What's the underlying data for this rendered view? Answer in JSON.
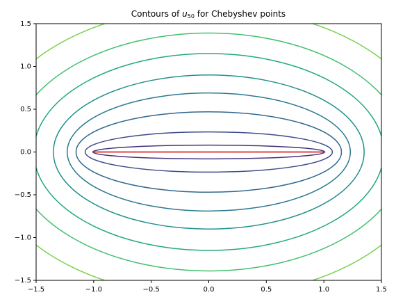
{
  "chart_data": {
    "type": "contour",
    "title": [
      "Contours of ",
      "u",
      "50",
      " for Chebyshev points"
    ],
    "xlim": [
      -1.5,
      1.5
    ],
    "ylim": [
      -1.5,
      1.5
    ],
    "xticks": [
      {
        "value": -1.5,
        "label": "−1.5"
      },
      {
        "value": -1,
        "label": "−1.0"
      },
      {
        "value": -0.5,
        "label": "−0.5"
      },
      {
        "value": 0,
        "label": "0.0"
      },
      0.5,
      {
        "value": 1,
        "label": "1.0"
      },
      1.5
    ],
    "yticks": [
      {
        "value": -1.5,
        "label": "−1.5"
      },
      {
        "value": -1,
        "label": "−1.0"
      },
      {
        "value": -0.5,
        "label": "−0.5"
      },
      {
        "value": 0,
        "label": "0.0"
      },
      0.5,
      {
        "value": 1,
        "label": "1.0"
      },
      1.5
    ],
    "contours": [
      {
        "a": 1.008,
        "b": 0.08,
        "color": "#46327e"
      },
      {
        "a": 1.074,
        "b": 0.235,
        "color": "#3e4a89"
      },
      {
        "a": 1.153,
        "b": 0.47,
        "color": "#31688e"
      },
      {
        "a": 1.23,
        "b": 0.69,
        "color": "#2a788e"
      },
      {
        "a": 1.35,
        "b": 0.9,
        "color": "#21918c"
      },
      {
        "a": 1.52,
        "b": 1.15,
        "color": "#22a884"
      },
      {
        "a": 1.71,
        "b": 1.39,
        "color": "#44bf70"
      },
      {
        "a": 1.96,
        "b": 1.69,
        "color": "#7ad151"
      }
    ],
    "segment": {
      "x": [
        -1,
        1
      ],
      "y": [
        0,
        0
      ],
      "color": "#cc0000"
    }
  }
}
